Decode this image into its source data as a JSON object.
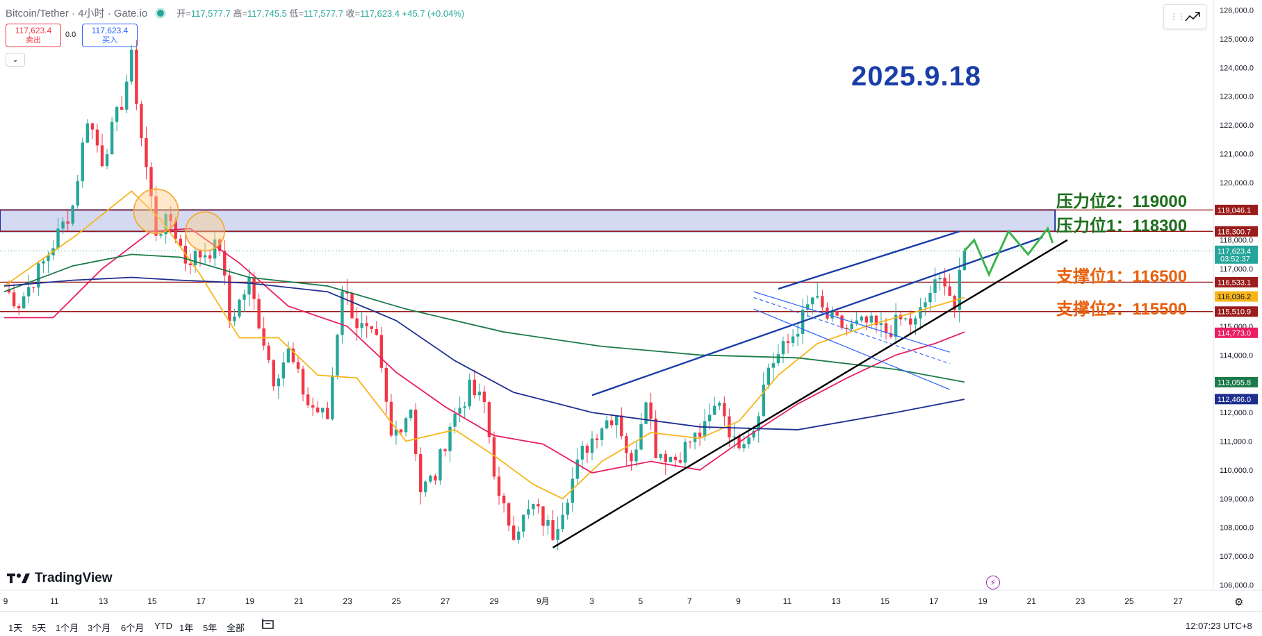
{
  "header": {
    "title": "Bitcoin/Tether · 4小时 · Gate.io",
    "open_label": "开=",
    "open": "117,577.7",
    "high_label": "高=",
    "high": "117,745.5",
    "low_label": "低=",
    "low": "117,577.7",
    "close_label": "收=",
    "close": "117,623.4",
    "change": "+45.7 (+0.04%)"
  },
  "trade": {
    "sell_price": "117,623.4",
    "sell_label": "卖出",
    "spread": "0.0",
    "buy_price": "117,623.4",
    "buy_label": "买入"
  },
  "date_stamp": "2025.9.18",
  "annotations": {
    "resistance2": "压力位2：119000",
    "resistance1": "压力位1：118300",
    "support1": "支撑位1：116500",
    "support2": "支撑位2：115500"
  },
  "branding": "TradingView",
  "bottom": {
    "ranges": [
      "1天",
      "5天",
      "1个月",
      "3个月",
      "6个月",
      "YTD",
      "1年",
      "5年",
      "全部"
    ],
    "clock": "12:07:23 UTC+8"
  },
  "colors": {
    "up": "#26a69a",
    "down": "#f23645",
    "ma_yellow": "#f7b51a",
    "ma_pink": "#e91e63",
    "ma_green": "#1b7a4a",
    "ma_navy": "#1e2f8f",
    "zone": "#c6cdee",
    "level": "#9b1c1c"
  },
  "chart_data": {
    "type": "candlestick",
    "symbol": "Bitcoin/Tether",
    "interval": "4小时",
    "exchange": "Gate.io",
    "ylim": [
      105600,
      126200
    ],
    "y_ticks": [
      "126,000.0",
      "125,000.0",
      "124,000.0",
      "123,000.0",
      "122,000.0",
      "121,000.0",
      "120,000.0",
      "119,000.0",
      "118,000.0",
      "117,000.0",
      "116,000.0",
      "115,000.0",
      "114,000.0",
      "113,000.0",
      "112,000.0",
      "111,000.0",
      "110,000.0",
      "109,000.0",
      "108,000.0",
      "107,000.0",
      "106,000.0"
    ],
    "x_ticks": [
      "9",
      "11",
      "13",
      "15",
      "17",
      "19",
      "21",
      "23",
      "25",
      "27",
      "29",
      "9月",
      "3",
      "5",
      "7",
      "9",
      "11",
      "13",
      "15",
      "17",
      "19",
      "21",
      "23",
      "25",
      "27"
    ],
    "price_labels": [
      {
        "text": "119,046.1",
        "value": 119046.1,
        "color": "#9b1c1c"
      },
      {
        "text": "118,300.7",
        "value": 118300.7,
        "color": "#9b1c1c"
      },
      {
        "text": "117,623.4",
        "value": 117623.4,
        "color": "#26a69a",
        "countdown": "03:52:37"
      },
      {
        "text": "116,533.1",
        "value": 116533.1,
        "color": "#9b1c1c"
      },
      {
        "text": "116,036.2",
        "value": 116036.2,
        "color": "#f7b51a"
      },
      {
        "text": "115,510.9",
        "value": 115510.9,
        "color": "#9b1c1c"
      },
      {
        "text": "114,773.0",
        "value": 114773.0,
        "color": "#e91e63"
      },
      {
        "text": "113,055.8",
        "value": 113055.8,
        "color": "#1b7a4a"
      },
      {
        "text": "112,466.0",
        "value": 112466.0,
        "color": "#1e2f8f"
      }
    ],
    "horizontal_levels": [
      119046.1,
      118300.7,
      116533.1,
      115510.9
    ],
    "resistance_zone": {
      "from": 118300.7,
      "to": 119046.1
    },
    "last_price": 117623.4,
    "anchors": [
      {
        "x": 0,
        "y": 116300
      },
      {
        "x": 3,
        "y": 115800
      },
      {
        "x": 8,
        "y": 117200
      },
      {
        "x": 14,
        "y": 119200
      },
      {
        "x": 17,
        "y": 122300
      },
      {
        "x": 20,
        "y": 120800
      },
      {
        "x": 24,
        "y": 122800
      },
      {
        "x": 26,
        "y": 124300
      },
      {
        "x": 28,
        "y": 121600
      },
      {
        "x": 31,
        "y": 118300
      },
      {
        "x": 34,
        "y": 118700
      },
      {
        "x": 37,
        "y": 117300
      },
      {
        "x": 40,
        "y": 117500
      },
      {
        "x": 44,
        "y": 117800
      },
      {
        "x": 46,
        "y": 115200
      },
      {
        "x": 50,
        "y": 116500
      },
      {
        "x": 55,
        "y": 113200
      },
      {
        "x": 58,
        "y": 114100
      },
      {
        "x": 62,
        "y": 112300
      },
      {
        "x": 66,
        "y": 111800
      },
      {
        "x": 69,
        "y": 116400
      },
      {
        "x": 72,
        "y": 115100
      },
      {
        "x": 76,
        "y": 114400
      },
      {
        "x": 79,
        "y": 111100
      },
      {
        "x": 83,
        "y": 112200
      },
      {
        "x": 85,
        "y": 109300
      },
      {
        "x": 88,
        "y": 109800
      },
      {
        "x": 91,
        "y": 111600
      },
      {
        "x": 95,
        "y": 112800
      },
      {
        "x": 98,
        "y": 112300
      },
      {
        "x": 101,
        "y": 108900
      },
      {
        "x": 104,
        "y": 107900
      },
      {
        "x": 108,
        "y": 108700
      },
      {
        "x": 112,
        "y": 107800
      },
      {
        "x": 115,
        "y": 109200
      },
      {
        "x": 118,
        "y": 110600
      },
      {
        "x": 122,
        "y": 111600
      },
      {
        "x": 125,
        "y": 112000
      },
      {
        "x": 128,
        "y": 110100
      },
      {
        "x": 131,
        "y": 112700
      },
      {
        "x": 133,
        "y": 110700
      },
      {
        "x": 137,
        "y": 110400
      },
      {
        "x": 140,
        "y": 111000
      },
      {
        "x": 143,
        "y": 111400
      },
      {
        "x": 146,
        "y": 112500
      },
      {
        "x": 149,
        "y": 110900
      },
      {
        "x": 153,
        "y": 111500
      },
      {
        "x": 156,
        "y": 113600
      },
      {
        "x": 160,
        "y": 114400
      },
      {
        "x": 163,
        "y": 115300
      },
      {
        "x": 165,
        "y": 116000
      },
      {
        "x": 168,
        "y": 115300
      },
      {
        "x": 172,
        "y": 114900
      },
      {
        "x": 176,
        "y": 115100
      },
      {
        "x": 180,
        "y": 114800
      },
      {
        "x": 183,
        "y": 115200
      },
      {
        "x": 186,
        "y": 115100
      },
      {
        "x": 189,
        "y": 116200
      },
      {
        "x": 192,
        "y": 116700
      },
      {
        "x": 194,
        "y": 115600
      },
      {
        "x": 196,
        "y": 117623.4
      }
    ],
    "moving_averages": [
      {
        "color": "#f7b51a",
        "points": [
          [
            0,
            116400
          ],
          [
            15,
            118200
          ],
          [
            26,
            119700
          ],
          [
            32,
            118700
          ],
          [
            40,
            116800
          ],
          [
            48,
            114600
          ],
          [
            56,
            114600
          ],
          [
            64,
            113300
          ],
          [
            72,
            113200
          ],
          [
            82,
            111000
          ],
          [
            92,
            111400
          ],
          [
            100,
            110500
          ],
          [
            108,
            109500
          ],
          [
            114,
            109000
          ],
          [
            122,
            110300
          ],
          [
            132,
            111300
          ],
          [
            142,
            111100
          ],
          [
            150,
            111700
          ],
          [
            158,
            113300
          ],
          [
            166,
            114400
          ],
          [
            176,
            115000
          ],
          [
            186,
            115500
          ],
          [
            196,
            116000
          ]
        ]
      },
      {
        "color": "#e91e63",
        "points": [
          [
            0,
            115300
          ],
          [
            10,
            115300
          ],
          [
            20,
            117000
          ],
          [
            30,
            118300
          ],
          [
            38,
            118400
          ],
          [
            48,
            117200
          ],
          [
            58,
            115700
          ],
          [
            70,
            115000
          ],
          [
            80,
            113400
          ],
          [
            90,
            112200
          ],
          [
            100,
            111200
          ],
          [
            110,
            110900
          ],
          [
            120,
            109900
          ],
          [
            132,
            110300
          ],
          [
            142,
            110000
          ],
          [
            152,
            111200
          ],
          [
            162,
            112300
          ],
          [
            172,
            113200
          ],
          [
            182,
            114000
          ],
          [
            190,
            114400
          ],
          [
            196,
            114800
          ]
        ]
      },
      {
        "color": "#1b7a4a",
        "points": [
          [
            0,
            116200
          ],
          [
            14,
            117100
          ],
          [
            26,
            117500
          ],
          [
            36,
            117400
          ],
          [
            50,
            116700
          ],
          [
            66,
            116400
          ],
          [
            82,
            115600
          ],
          [
            102,
            114800
          ],
          [
            122,
            114300
          ],
          [
            142,
            114000
          ],
          [
            162,
            113900
          ],
          [
            182,
            113500
          ],
          [
            196,
            113060
          ]
        ]
      },
      {
        "color": "#1e2f8f",
        "points": [
          [
            0,
            116400
          ],
          [
            14,
            116600
          ],
          [
            26,
            116700
          ],
          [
            36,
            116600
          ],
          [
            50,
            116500
          ],
          [
            66,
            116200
          ],
          [
            80,
            115200
          ],
          [
            92,
            113800
          ],
          [
            104,
            112700
          ],
          [
            120,
            112000
          ],
          [
            142,
            111500
          ],
          [
            162,
            111400
          ],
          [
            182,
            112000
          ],
          [
            196,
            112460
          ]
        ]
      }
    ],
    "trendlines": [
      {
        "color": "#000000",
        "width": 2.4,
        "from": [
          112,
          107300
        ],
        "to": [
          217,
          118000
        ]
      },
      {
        "color": "#1a3ea8",
        "width": 2.4,
        "from": [
          120,
          112600
        ],
        "to": [
          212,
          118100
        ]
      },
      {
        "color": "#1a3ea8",
        "width": 2.4,
        "from": [
          158,
          116300
        ],
        "to": [
          195,
          118300
        ]
      },
      {
        "color": "#2962ff",
        "width": 1.2,
        "from": [
          153,
          116200
        ],
        "to": [
          193,
          114100
        ]
      },
      {
        "color": "#2962ff",
        "width": 1.2,
        "from": [
          153,
          115600
        ],
        "to": [
          193,
          112800
        ]
      },
      {
        "color": "#2962ff",
        "width": 1.2,
        "dash": true,
        "from": [
          153,
          116000
        ],
        "to": [
          193,
          113700
        ]
      }
    ],
    "projection": [
      [
        196,
        117623.4
      ],
      [
        198,
        118000
      ],
      [
        201,
        116800
      ],
      [
        205,
        118300
      ],
      [
        209,
        117500
      ],
      [
        213,
        118400
      ],
      [
        214,
        117900
      ]
    ],
    "highlight_circles": [
      {
        "x": 31,
        "y": 119000
      },
      {
        "x": 41,
        "y": 118300
      }
    ]
  }
}
